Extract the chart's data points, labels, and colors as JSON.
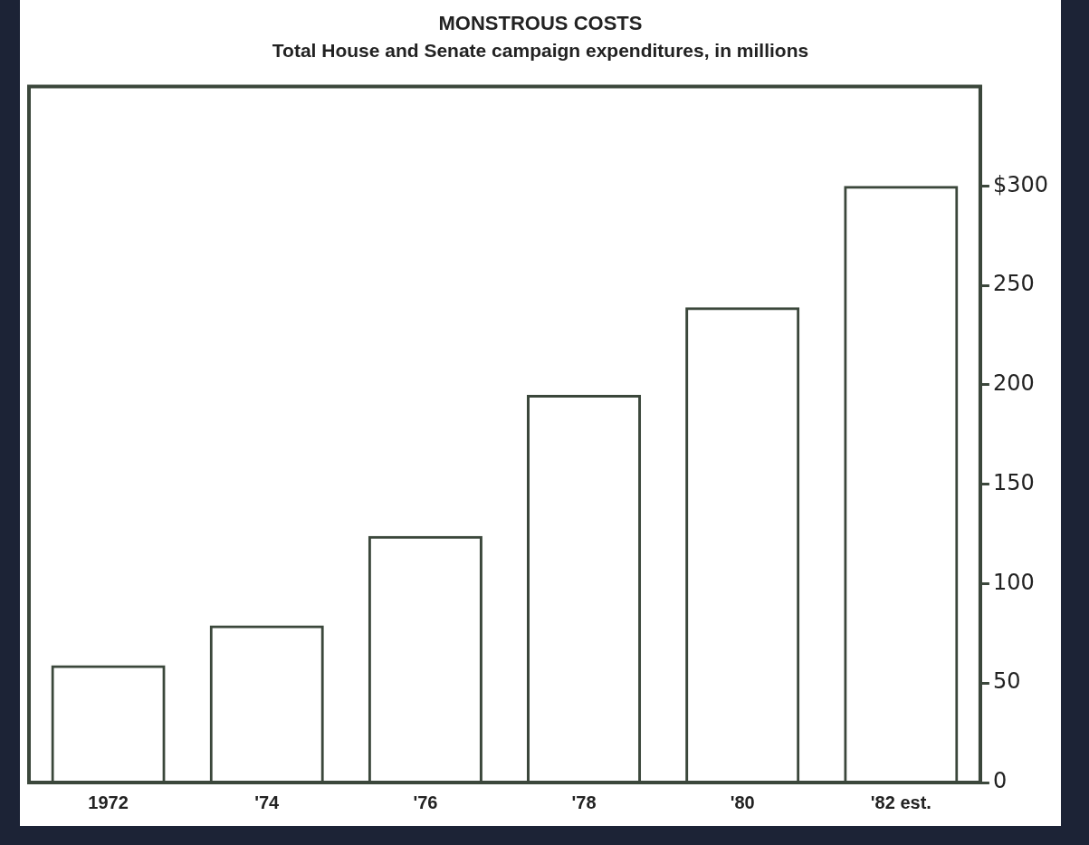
{
  "chart_data": {
    "type": "bar",
    "title": "MONSTROUS COSTS",
    "subtitle": "Total House and Senate campaign expenditures, in millions",
    "categories": [
      "1972",
      "'74",
      "'76",
      "'78",
      "'80",
      "'82 est."
    ],
    "values": [
      59,
      79,
      124,
      195,
      239,
      300
    ],
    "color": "#3b473b",
    "ylim": [
      0,
      350
    ],
    "yticks": [
      0,
      50,
      100,
      150,
      200,
      250,
      {
        "value": 300,
        "label": "$300"
      }
    ]
  }
}
